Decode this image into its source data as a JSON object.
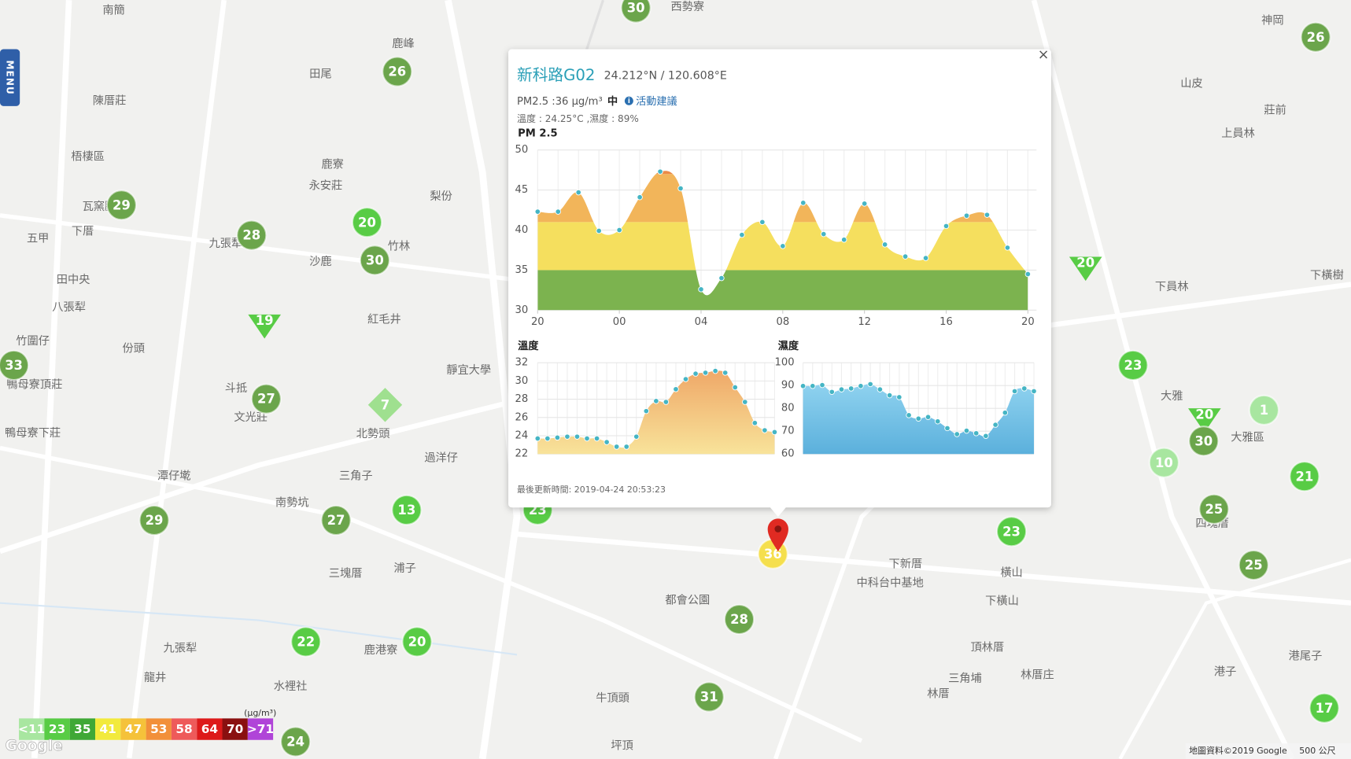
{
  "menu": "MENU",
  "places": [
    "南簡",
    "西勢寮",
    "鹿峰",
    "田尾",
    "陳厝莊",
    "梧棲區",
    "鹿寮",
    "永安莊",
    "瓦窯腳",
    "下厝",
    "五甲",
    "九張犁",
    "沙鹿",
    "竹林",
    "紅毛井",
    "田中央",
    "八張犁",
    "竹圍仔",
    "份頭",
    "斗抵",
    "文光莊",
    "靜宜大學",
    "北勢頭",
    "過洋仔",
    "三角子",
    "潭仔墘",
    "南勢坑",
    "三塊厝",
    "浦子",
    "九張犁",
    "龍井",
    "水裡社",
    "鹿港寮",
    "牛頂頭",
    "坪頂",
    "都會公園",
    "下新厝",
    "中科台中基地",
    "橫山",
    "下橫山",
    "頂林厝",
    "三角埔",
    "林厝庄",
    "林厝",
    "港子",
    "港尾子",
    "山皮",
    "莊前",
    "上員林",
    "下員林",
    "大雅",
    "大雅區",
    "神岡",
    "四塊厝",
    "鴨母寮頂莊",
    "鴨母寮下莊",
    "下橫樹",
    "梨份"
  ],
  "markers": [
    {
      "value": 30,
      "shape": "circle",
      "color": "#6ba54b"
    },
    {
      "value": 26,
      "shape": "circle",
      "color": "#6ba54b"
    },
    {
      "value": 29,
      "shape": "circle",
      "color": "#6ba54b"
    },
    {
      "value": 28,
      "shape": "circle",
      "color": "#6ba54b"
    },
    {
      "value": 20,
      "shape": "circle",
      "color": "#58cc45"
    },
    {
      "value": 30,
      "shape": "circle",
      "color": "#6ba54b"
    },
    {
      "value": 19,
      "shape": "triangle",
      "color": "#58cc45"
    },
    {
      "value": 33,
      "shape": "circle",
      "color": "#6ba54b"
    },
    {
      "value": 27,
      "shape": "circle",
      "color": "#6ba54b"
    },
    {
      "value": 7,
      "shape": "diamond",
      "color": "#9fe08f"
    },
    {
      "value": 29,
      "shape": "circle",
      "color": "#6ba54b"
    },
    {
      "value": 27,
      "shape": "circle",
      "color": "#6ba54b"
    },
    {
      "value": 13,
      "shape": "circle",
      "color": "#58cc45"
    },
    {
      "value": 23,
      "shape": "circle",
      "color": "#58cc45"
    },
    {
      "value": 22,
      "shape": "circle",
      "color": "#58cc45"
    },
    {
      "value": 20,
      "shape": "circle",
      "color": "#58cc45"
    },
    {
      "value": 28,
      "shape": "circle",
      "color": "#6ba54b"
    },
    {
      "value": 31,
      "shape": "circle",
      "color": "#6ba54b"
    },
    {
      "value": 24,
      "shape": "circle",
      "color": "#6ba54b"
    },
    {
      "value": 26,
      "shape": "circle",
      "color": "#6ba54b"
    },
    {
      "value": 20,
      "shape": "triangle",
      "color": "#58cc45"
    },
    {
      "value": 23,
      "shape": "circle",
      "color": "#58cc45"
    },
    {
      "value": 1,
      "shape": "circle",
      "color": "#a8e6a0"
    },
    {
      "value": 20,
      "shape": "triangle",
      "color": "#58cc45"
    },
    {
      "value": 30,
      "shape": "circle",
      "color": "#6ba54b"
    },
    {
      "value": 10,
      "shape": "circle",
      "color": "#a8e6a0"
    },
    {
      "value": 21,
      "shape": "circle",
      "color": "#58cc45"
    },
    {
      "value": 25,
      "shape": "circle",
      "color": "#6ba54b"
    },
    {
      "value": 23,
      "shape": "circle",
      "color": "#58cc45"
    },
    {
      "value": 25,
      "shape": "circle",
      "color": "#6ba54b"
    },
    {
      "value": 17,
      "shape": "circle",
      "color": "#58cc45"
    },
    {
      "value": 36,
      "shape": "circle",
      "color": "#f5df4d"
    }
  ],
  "popup": {
    "title": "新科路G02",
    "coords": "24.212°N / 120.608°E",
    "pm25_reading": "PM2.5 :36 μg/m³",
    "level": "中",
    "advice": "活動建議",
    "weather": "溫度 : 24.25°C ,濕度 : 89%",
    "updated": "最後更新時間: 2019-04-24 20:53:23",
    "close": "×"
  },
  "chart_data": [
    {
      "type": "area",
      "title": "PM 2.5",
      "x": [
        0,
        1,
        2,
        3,
        4,
        5,
        6,
        7,
        8,
        9,
        10,
        11,
        12,
        13,
        14,
        15,
        16,
        17,
        18,
        19,
        20,
        21,
        22,
        23,
        24
      ],
      "values": [
        42.3,
        42.3,
        44.7,
        39.9,
        40,
        44.1,
        47.3,
        45.2,
        32.6,
        34,
        39.4,
        41,
        38,
        43.4,
        39.5,
        38.8,
        43.3,
        38.2,
        36.7,
        36.5,
        40.5,
        41.8,
        41.9,
        37.8,
        34.5
      ],
      "xlim": [
        0,
        24
      ],
      "xticks": [
        {
          "value": 0,
          "label": "20"
        },
        {
          "value": 4,
          "label": "00"
        },
        {
          "value": 8,
          "label": "04"
        },
        {
          "value": 12,
          "label": "08"
        },
        {
          "value": 16,
          "label": "12"
        },
        {
          "value": 20,
          "label": "16"
        },
        {
          "value": 24,
          "label": "20"
        }
      ],
      "ylim": [
        30,
        50
      ],
      "yticks": [
        30,
        35,
        40,
        45,
        50
      ],
      "grid": true,
      "color_bands": [
        {
          "below": 35,
          "color": "#7cb34f"
        },
        {
          "below": 41,
          "color": "#f5df5e"
        },
        {
          "below": 47,
          "color": "#f2b55a"
        },
        {
          "below": 53,
          "color": "#eb8a47"
        }
      ]
    },
    {
      "type": "area",
      "title": "溫度",
      "values": [
        23.7,
        23.7,
        23.8,
        23.9,
        23.9,
        23.7,
        23.7,
        23.3,
        22.8,
        22.8,
        23.9,
        26.7,
        27.8,
        27.7,
        29.1,
        30.2,
        30.8,
        30.9,
        31.1,
        30.9,
        29.3,
        27.7,
        25.4,
        24.6,
        24.4
      ],
      "ylim": [
        22,
        32
      ],
      "yticks": [
        22,
        24,
        26,
        28,
        30,
        32
      ],
      "grid": true,
      "color": [
        "#f8e39a",
        "#efa868"
      ]
    },
    {
      "type": "area",
      "title": "濕度",
      "values": [
        89.8,
        89.8,
        90.2,
        87.2,
        88.3,
        88.7,
        89.8,
        90.6,
        88.3,
        85.7,
        84.9,
        77,
        75.5,
        76.2,
        74.3,
        71.3,
        68.7,
        70.2,
        69.1,
        67.9,
        72.8,
        78.1,
        87.5,
        88.7,
        87.5
      ],
      "ylim": [
        60,
        100
      ],
      "yticks": [
        60,
        70,
        80,
        90,
        100
      ],
      "grid": true,
      "color": [
        "#5bb0dc",
        "#8fd2ef"
      ]
    }
  ],
  "legend": {
    "unit": "(μg/m³)",
    "items": [
      {
        "label": "<11",
        "color": "#a8e6a0"
      },
      {
        "label": "23",
        "color": "#58cc45"
      },
      {
        "label": "35",
        "color": "#3fa836"
      },
      {
        "label": "41",
        "color": "#f2ea3c"
      },
      {
        "label": "47",
        "color": "#f5c23a"
      },
      {
        "label": "53",
        "color": "#f2903a"
      },
      {
        "label": "58",
        "color": "#ee5a5a"
      },
      {
        "label": "64",
        "color": "#dd1a1a"
      },
      {
        "label": "70",
        "color": "#8a1010"
      },
      {
        "label": ">71",
        "color": "#b044d8"
      }
    ]
  },
  "google": "Google",
  "attribution": "地圖資料©2019 Google",
  "scale": "500 公尺"
}
